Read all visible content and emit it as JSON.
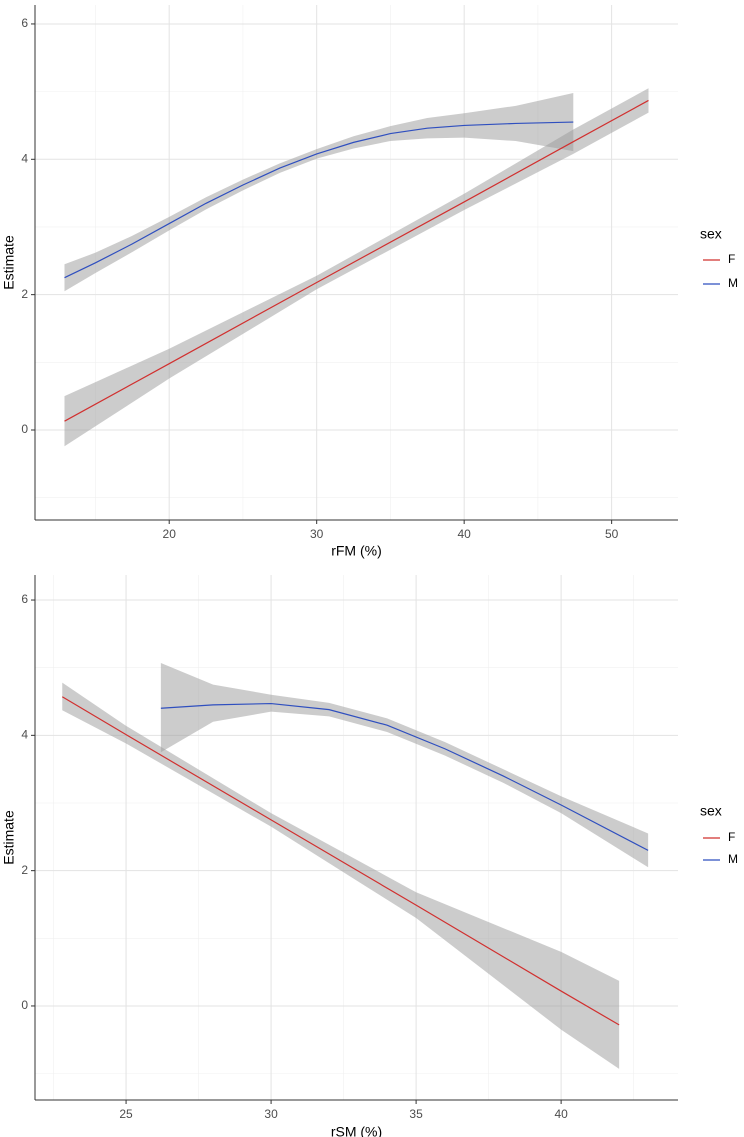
{
  "chart_data": [
    {
      "type": "line",
      "xlabel": "rFM (%)",
      "ylabel": "Estimate",
      "xlim": [
        10.9,
        54.5
      ],
      "ylim": [
        -1.33,
        6.28
      ],
      "xticks": [
        20,
        30,
        40,
        50
      ],
      "yticks": [
        0,
        2,
        4,
        6
      ],
      "xminor": [
        15,
        25,
        35,
        45
      ],
      "yminor": [
        -1,
        1,
        3,
        5
      ],
      "grid": true,
      "legend": "right",
      "legend_title": "sex",
      "band_color": "#999999",
      "series": [
        {
          "name": "F",
          "color": "#d1302f",
          "x": [
            12.9,
            20,
            30,
            40,
            47.4,
            52.5
          ],
          "values": [
            0.13,
            0.98,
            2.18,
            3.37,
            4.26,
            4.87
          ],
          "lower": [
            -0.24,
            0.76,
            2.08,
            3.25,
            4.08,
            4.69
          ],
          "upper": [
            0.5,
            1.2,
            2.28,
            3.49,
            4.44,
            5.05
          ]
        },
        {
          "name": "M",
          "color": "#2f4fbf",
          "x": [
            12.9,
            15,
            17.5,
            20,
            22.5,
            25,
            27.5,
            30,
            32.5,
            35,
            37.5,
            40,
            43.5,
            47.4
          ],
          "values": [
            2.25,
            2.47,
            2.75,
            3.05,
            3.35,
            3.62,
            3.87,
            4.08,
            4.25,
            4.38,
            4.46,
            4.5,
            4.53,
            4.55
          ],
          "lower": [
            2.05,
            2.32,
            2.63,
            2.95,
            3.26,
            3.54,
            3.8,
            4.01,
            4.16,
            4.27,
            4.31,
            4.32,
            4.27,
            4.12
          ],
          "upper": [
            2.45,
            2.62,
            2.87,
            3.15,
            3.44,
            3.7,
            3.94,
            4.15,
            4.34,
            4.49,
            4.61,
            4.68,
            4.79,
            4.98
          ]
        }
      ]
    },
    {
      "type": "line",
      "xlabel": "rSM (%)",
      "ylabel": "Estimate",
      "xlim": [
        21.86,
        44.03
      ],
      "ylim": [
        -1.39,
        6.37
      ],
      "xticks": [
        25,
        30,
        35,
        40
      ],
      "yticks": [
        0,
        2,
        4,
        6
      ],
      "xminor": [
        22.5,
        27.5,
        32.5,
        37.5,
        42.5
      ],
      "yminor": [
        -1,
        1,
        3,
        5
      ],
      "grid": true,
      "legend": "right",
      "legend_title": "sex",
      "band_color": "#999999",
      "series": [
        {
          "name": "F",
          "color": "#d1302f",
          "x": [
            22.8,
            25,
            30,
            35,
            40,
            42
          ],
          "values": [
            4.57,
            4.01,
            2.75,
            1.49,
            0.22,
            -0.28
          ],
          "lower": [
            4.37,
            3.88,
            2.65,
            1.3,
            -0.35,
            -0.93
          ],
          "upper": [
            4.78,
            4.14,
            2.85,
            1.68,
            0.8,
            0.37
          ]
        },
        {
          "name": "M",
          "color": "#2f4fbf",
          "x": [
            26.2,
            28,
            30,
            32,
            34,
            36,
            38,
            40,
            43
          ],
          "values": [
            4.4,
            4.45,
            4.47,
            4.38,
            4.15,
            3.8,
            3.4,
            2.97,
            2.3
          ],
          "lower": [
            3.75,
            4.2,
            4.35,
            4.28,
            4.05,
            3.7,
            3.3,
            2.85,
            2.05
          ],
          "upper": [
            5.07,
            4.75,
            4.6,
            4.48,
            4.25,
            3.9,
            3.5,
            3.1,
            2.55
          ]
        }
      ]
    }
  ]
}
